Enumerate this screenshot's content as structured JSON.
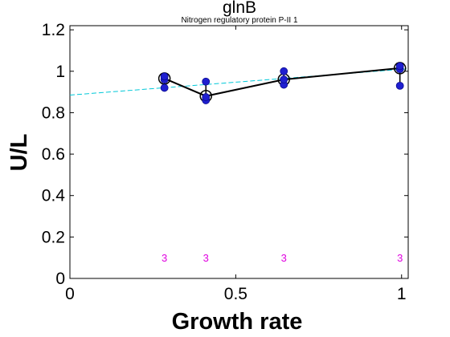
{
  "chart_data": {
    "type": "scatter",
    "title": "glnB",
    "subtitle": "Nitrogen regulatory protein P-II 1",
    "xlabel": "Growth rate",
    "ylabel": "U/L",
    "xlim": [
      0,
      1.02
    ],
    "ylim": [
      0,
      1.22
    ],
    "xticks": [
      {
        "value": 0,
        "label": "0"
      },
      {
        "value": 0.5,
        "label": "0.5"
      },
      {
        "value": 1,
        "label": "1"
      }
    ],
    "yticks": [
      {
        "value": 0,
        "label": "0"
      },
      {
        "value": 0.2,
        "label": "0.2"
      },
      {
        "value": 0.4,
        "label": "0.4"
      },
      {
        "value": 0.6,
        "label": "0.6"
      },
      {
        "value": 0.8,
        "label": "0.8"
      },
      {
        "value": 1,
        "label": "1"
      },
      {
        "value": 1.2,
        "label": "1.2"
      }
    ],
    "grid": false,
    "legend": "none",
    "colors": {
      "replicate": "#1f1fd0",
      "mean_line": "#000000",
      "fit_line": "#00c8d8",
      "count_label": "#e000e0"
    },
    "replicates": [
      {
        "x": 0.285,
        "y": [
          0.92,
          0.96,
          0.975
        ]
      },
      {
        "x": 0.41,
        "y": [
          0.86,
          0.875,
          0.95
        ]
      },
      {
        "x": 0.645,
        "y": [
          0.935,
          0.96,
          1.0
        ]
      },
      {
        "x": 0.995,
        "y": [
          0.93,
          1.01,
          1.025
        ]
      }
    ],
    "mean_series": {
      "x": [
        0.285,
        0.41,
        0.645,
        0.995
      ],
      "y": [
        0.965,
        0.88,
        0.96,
        1.015
      ]
    },
    "fit_line": {
      "x": [
        0,
        1.02
      ],
      "y": [
        0.885,
        1.012
      ]
    },
    "counts": [
      {
        "x": 0.285,
        "label": "3"
      },
      {
        "x": 0.41,
        "label": "3"
      },
      {
        "x": 0.645,
        "label": "3"
      },
      {
        "x": 0.995,
        "label": "3"
      }
    ],
    "count_y": 0.1
  }
}
